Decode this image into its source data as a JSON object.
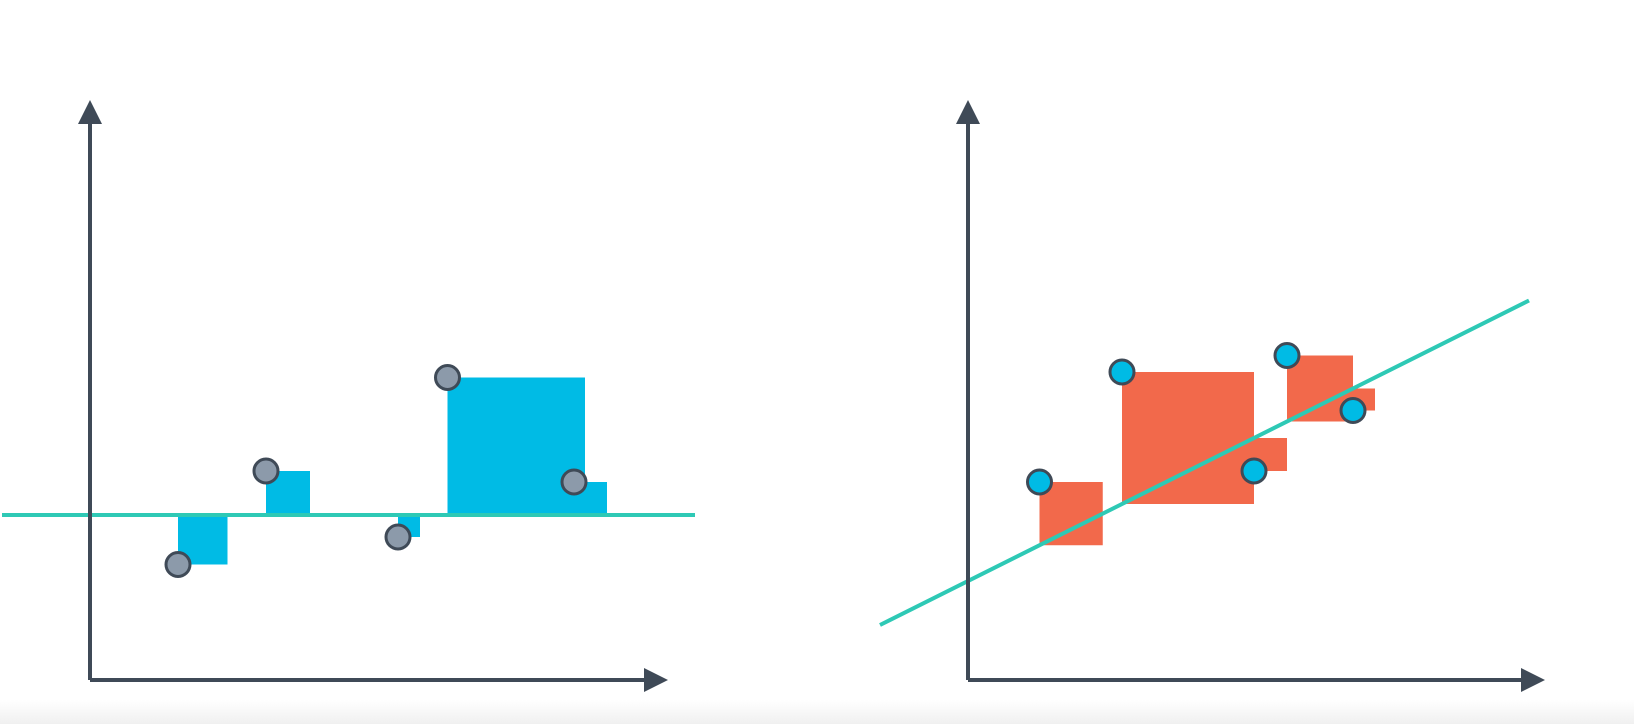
{
  "colors": {
    "axis": "#3f4a57",
    "fit_line": "#2ec9b5",
    "left_square": "#00bbe5",
    "left_point": "#8c9aaa",
    "right_square": "#f2694b",
    "right_point": "#00bbe5",
    "point_outline": "#3f4a57",
    "background": "#ffffff"
  },
  "left_panel": {
    "description_icon": "least-squares-horizontal-line",
    "line": {
      "slope": 0,
      "intercept": 3.0
    },
    "points": [
      {
        "x": 1.6,
        "y": 2.1
      },
      {
        "x": 3.2,
        "y": 3.8
      },
      {
        "x": 5.6,
        "y": 2.6
      },
      {
        "x": 6.5,
        "y": 5.5
      },
      {
        "x": 8.8,
        "y": 3.6
      }
    ]
  },
  "right_panel": {
    "description_icon": "least-squares-best-fit-line",
    "line": {
      "slope": 0.5,
      "intercept": 1.8
    },
    "points": [
      {
        "x": 1.3,
        "y": 3.6
      },
      {
        "x": 2.8,
        "y": 5.6
      },
      {
        "x": 5.2,
        "y": 3.8
      },
      {
        "x": 5.8,
        "y": 5.9
      },
      {
        "x": 7.0,
        "y": 4.9
      }
    ]
  }
}
